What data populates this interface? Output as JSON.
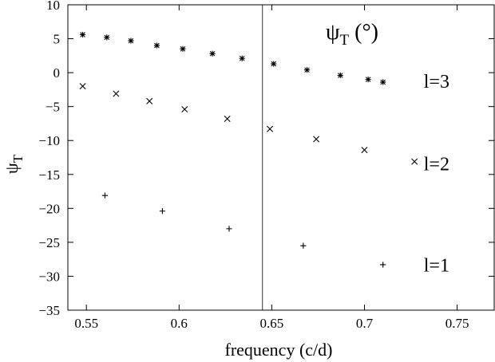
{
  "chart_data": {
    "type": "scatter",
    "title": "ψT (°)",
    "xlabel": "frequency (c/d)",
    "ylabel": "ψT",
    "xlim": [
      0.54,
      0.77
    ],
    "ylim": [
      -35,
      10
    ],
    "xticks": [
      0.55,
      0.6,
      0.65,
      0.7,
      0.75
    ],
    "xtick_labels": [
      "0.55",
      "0.6",
      "0.65",
      "0.7",
      "0.75"
    ],
    "yticks": [
      10,
      5,
      0,
      -5,
      -10,
      -15,
      -20,
      -25,
      -30,
      -35
    ],
    "ytick_labels": [
      "10",
      "5",
      "0",
      "−5",
      "−10",
      "−15",
      "−20",
      "−25",
      "−30",
      "−35"
    ],
    "vertical_line_x": 0.645,
    "grid": false,
    "series": [
      {
        "name": "l=3",
        "marker": "asterisk",
        "label_at": [
          0.732,
          -2.2
        ],
        "x": [
          0.548,
          0.561,
          0.574,
          0.588,
          0.602,
          0.618,
          0.634,
          0.651,
          0.669,
          0.687,
          0.702,
          0.71
        ],
        "y": [
          5.6,
          5.2,
          4.7,
          4.0,
          3.5,
          2.8,
          2.1,
          1.3,
          0.4,
          -0.4,
          -1.0,
          -1.4
        ]
      },
      {
        "name": "l=2",
        "marker": "x",
        "label_at": [
          0.732,
          -14.4
        ],
        "x": [
          0.548,
          0.566,
          0.584,
          0.603,
          0.626,
          0.649,
          0.674,
          0.7,
          0.727
        ],
        "y": [
          -2.0,
          -3.1,
          -4.2,
          -5.4,
          -6.8,
          -8.3,
          -9.8,
          -11.4,
          -13.1
        ]
      },
      {
        "name": "l=1",
        "marker": "plus",
        "label_at": [
          0.732,
          -29.3
        ],
        "x": [
          0.56,
          0.591,
          0.627,
          0.667,
          0.71
        ],
        "y": [
          -18.1,
          -20.4,
          -23.0,
          -25.5,
          -28.3
        ]
      }
    ]
  }
}
